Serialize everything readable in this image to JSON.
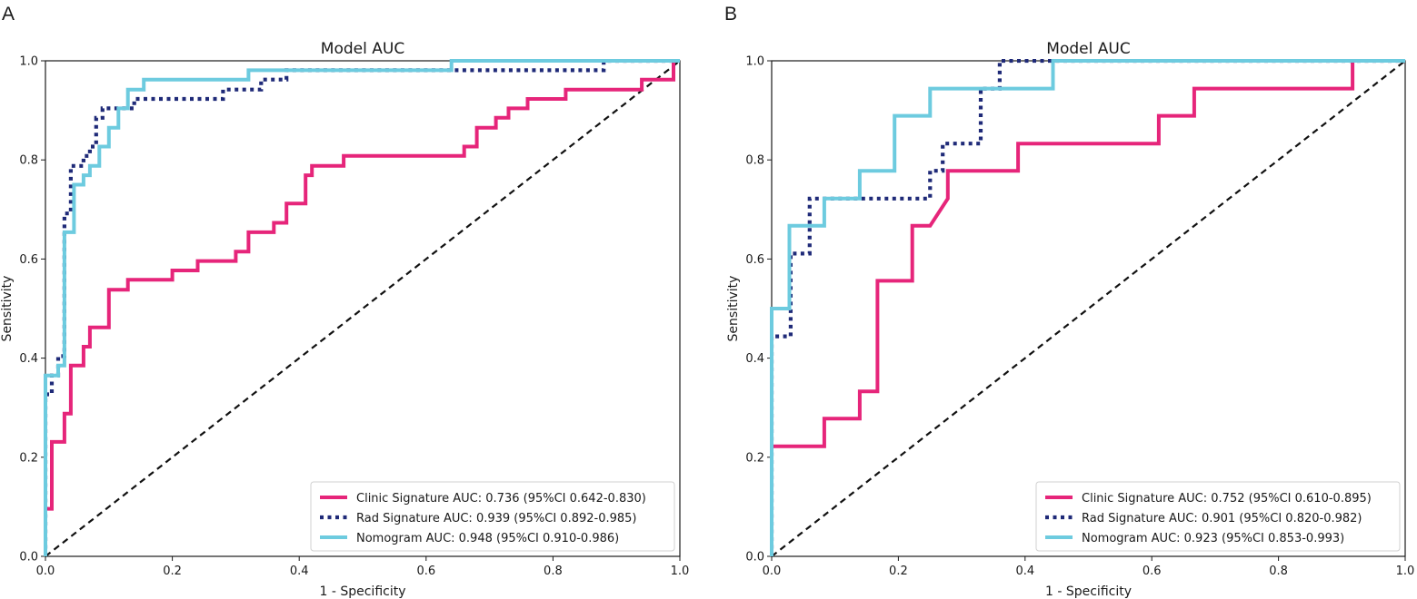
{
  "figure_labels": [
    "A",
    "B"
  ],
  "chart_data": [
    {
      "panel": "A",
      "type": "line",
      "title": "Model AUC",
      "xlabel": "1 - Specificity",
      "ylabel": "Sensitivity",
      "xlim": [
        0,
        1
      ],
      "ylim": [
        0,
        1
      ],
      "xticks": [
        "0.0",
        "0.2",
        "0.4",
        "0.6",
        "0.8",
        "1.0"
      ],
      "yticks": [
        "0.0",
        "0.2",
        "0.4",
        "0.6",
        "0.8",
        "1.0"
      ],
      "legend_position": "lower-right",
      "reference_line": {
        "x": [
          0,
          1
        ],
        "y": [
          0,
          1
        ],
        "color": "#111111",
        "style": "dashed"
      },
      "series": [
        {
          "name": "Clinic Signature AUC: 0.736 (95%CI 0.642-0.830)",
          "color": "#e6257a",
          "style": "solid",
          "x": [
            0,
            0,
            0.01,
            0.01,
            0.02,
            0.02,
            0.03,
            0.03,
            0.04,
            0.04,
            0.05,
            0.05,
            0.06,
            0.06,
            0.07,
            0.07,
            0.1,
            0.1,
            0.13,
            0.13,
            0.2,
            0.2,
            0.24,
            0.24,
            0.28,
            0.28,
            0.3,
            0.3,
            0.32,
            0.32,
            0.36,
            0.36,
            0.38,
            0.38,
            0.41,
            0.41,
            0.42,
            0.42,
            0.45,
            0.45,
            0.47,
            0.47,
            0.66,
            0.66,
            0.68,
            0.68,
            0.7,
            0.7,
            0.71,
            0.71,
            0.73,
            0.73,
            0.76,
            0.76,
            0.82,
            0.82,
            0.94,
            0.94,
            0.99,
            0.99
          ],
          "y": [
            0,
            0.096,
            0.096,
            0.231,
            0.231,
            0.231,
            0.231,
            0.288,
            0.288,
            0.385,
            0.385,
            0.385,
            0.385,
            0.423,
            0.423,
            0.462,
            0.462,
            0.538,
            0.538,
            0.558,
            0.558,
            0.577,
            0.577,
            0.596,
            0.596,
            0.596,
            0.596,
            0.615,
            0.615,
            0.654,
            0.654,
            0.673,
            0.673,
            0.712,
            0.712,
            0.769,
            0.769,
            0.788,
            0.788,
            0.788,
            0.788,
            0.808,
            0.808,
            0.827,
            0.827,
            0.865,
            0.865,
            0.865,
            0.865,
            0.885,
            0.885,
            0.904,
            0.904,
            0.923,
            0.923,
            0.942,
            0.942,
            0.962,
            0.962,
            1.0
          ]
        },
        {
          "name": "Rad Signature AUC: 0.939 (95%CI 0.892-0.985)",
          "color": "#1f2a78",
          "style": "dotted",
          "x": [
            0,
            0,
            0.01,
            0.01,
            0.02,
            0.02,
            0.03,
            0.03,
            0.04,
            0.04,
            0.06,
            0.06,
            0.07,
            0.07,
            0.08,
            0.08,
            0.09,
            0.09,
            0.12,
            0.12,
            0.14,
            0.14,
            0.28,
            0.28,
            0.34,
            0.34,
            0.38,
            0.38,
            0.88,
            0.88,
            1.0
          ],
          "y": [
            0,
            0.327,
            0.327,
            0.365,
            0.365,
            0.404,
            0.404,
            0.692,
            0.692,
            0.788,
            0.788,
            0.808,
            0.808,
            0.827,
            0.827,
            0.885,
            0.885,
            0.904,
            0.904,
            0.904,
            0.904,
            0.923,
            0.923,
            0.942,
            0.942,
            0.962,
            0.962,
            0.981,
            0.981,
            1.0,
            1.0
          ]
        },
        {
          "name": "Nomogram AUC: 0.948 (95%CI 0.910-0.986)",
          "color": "#6dcbdf",
          "style": "solid",
          "x": [
            0,
            0,
            0.02,
            0.02,
            0.03,
            0.03,
            0.045,
            0.045,
            0.06,
            0.06,
            0.07,
            0.07,
            0.085,
            0.085,
            0.1,
            0.1,
            0.115,
            0.115,
            0.13,
            0.13,
            0.155,
            0.155,
            0.32,
            0.32,
            0.64,
            0.64,
            1.0
          ],
          "y": [
            0,
            0.365,
            0.365,
            0.385,
            0.385,
            0.654,
            0.654,
            0.75,
            0.75,
            0.769,
            0.769,
            0.788,
            0.788,
            0.827,
            0.827,
            0.865,
            0.865,
            0.904,
            0.904,
            0.942,
            0.942,
            0.962,
            0.962,
            0.981,
            0.981,
            1.0,
            1.0
          ]
        }
      ]
    },
    {
      "panel": "B",
      "type": "line",
      "title": "Model AUC",
      "xlabel": "1 - Specificity",
      "ylabel": "Sensitivity",
      "xlim": [
        0,
        1
      ],
      "ylim": [
        0,
        1
      ],
      "xticks": [
        "0.0",
        "0.2",
        "0.4",
        "0.6",
        "0.8",
        "1.0"
      ],
      "yticks": [
        "0.0",
        "0.2",
        "0.4",
        "0.6",
        "0.8",
        "1.0"
      ],
      "legend_position": "lower-right",
      "reference_line": {
        "x": [
          0,
          1
        ],
        "y": [
          0,
          1
        ],
        "color": "#111111",
        "style": "dashed"
      },
      "series": [
        {
          "name": "Clinic Signature AUC: 0.752 (95%CI 0.610-0.895)",
          "color": "#e6257a",
          "style": "solid",
          "x": [
            0,
            0,
            0.083,
            0.083,
            0.139,
            0.139,
            0.167,
            0.167,
            0.222,
            0.222,
            0.25,
            0.278,
            0.278,
            0.389,
            0.389,
            0.611,
            0.611,
            0.667,
            0.667,
            0.917,
            0.917
          ],
          "y": [
            0,
            0.222,
            0.222,
            0.278,
            0.278,
            0.333,
            0.333,
            0.556,
            0.556,
            0.667,
            0.667,
            0.722,
            0.778,
            0.778,
            0.833,
            0.833,
            0.889,
            0.889,
            0.944,
            0.944,
            1.0
          ]
        },
        {
          "name": "Rad Signature AUC: 0.901 (95%CI 0.820-0.982)",
          "color": "#1f2a78",
          "style": "dotted",
          "x": [
            0,
            0,
            0.015,
            0.015,
            0.03,
            0.03,
            0.045,
            0.045,
            0.06,
            0.06,
            0.11,
            0.11,
            0.25,
            0.25,
            0.27,
            0.27,
            0.33,
            0.33,
            0.36,
            0.36,
            1.0
          ],
          "y": [
            0,
            0.444,
            0.444,
            0.444,
            0.444,
            0.611,
            0.611,
            0.611,
            0.611,
            0.722,
            0.722,
            0.722,
            0.722,
            0.778,
            0.778,
            0.833,
            0.833,
            0.944,
            0.944,
            1.0,
            1.0
          ]
        },
        {
          "name": "Nomogram AUC: 0.923 (95%CI 0.853-0.993)",
          "color": "#6dcbdf",
          "style": "solid",
          "x": [
            0,
            0,
            0.028,
            0.028,
            0.083,
            0.083,
            0.139,
            0.139,
            0.194,
            0.194,
            0.25,
            0.25,
            0.444,
            0.444,
            1.0
          ],
          "y": [
            0,
            0.5,
            0.5,
            0.667,
            0.667,
            0.722,
            0.722,
            0.778,
            0.778,
            0.889,
            0.889,
            0.944,
            0.944,
            1.0,
            1.0
          ]
        }
      ]
    }
  ]
}
